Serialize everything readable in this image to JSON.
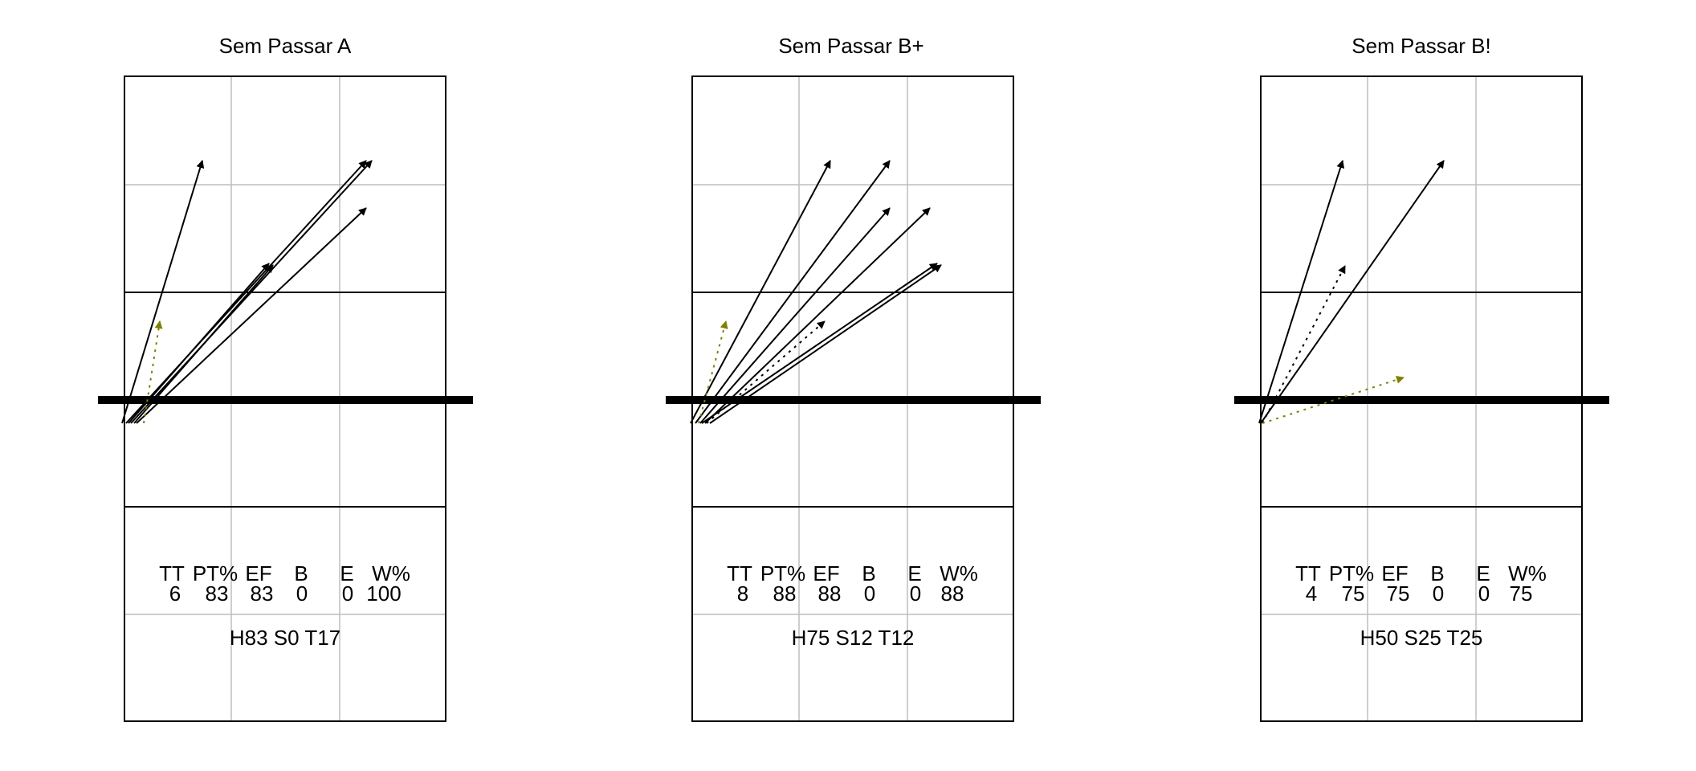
{
  "panels": [
    {
      "title": "Sem Passar A",
      "stats_header": [
        "TT",
        "PT%",
        "EF",
        "B",
        "E",
        "W%"
      ],
      "stats_values": [
        "6",
        "83",
        "83",
        "0",
        "0",
        "100"
      ],
      "summary": "H83 S0 T17"
    },
    {
      "title": "Sem Passar B+",
      "stats_header": [
        "TT",
        "PT%",
        "EF",
        "B",
        "E",
        "W%"
      ],
      "stats_values": [
        "8",
        "88",
        "88",
        "0",
        "0",
        "88"
      ],
      "summary": "H75 S12 T12"
    },
    {
      "title": "Sem Passar B!",
      "stats_header": [
        "TT",
        "PT%",
        "EF",
        "B",
        "E",
        "W%"
      ],
      "stats_values": [
        "4",
        "75",
        "75",
        "0",
        "0",
        "75"
      ],
      "summary": "H50 S25 T25"
    }
  ],
  "colors": {
    "solid_arrow": "#000000",
    "dotted_black": "#000000",
    "dotted_olive": "#808000",
    "grid": "#bebebe",
    "net": "#000000"
  }
}
